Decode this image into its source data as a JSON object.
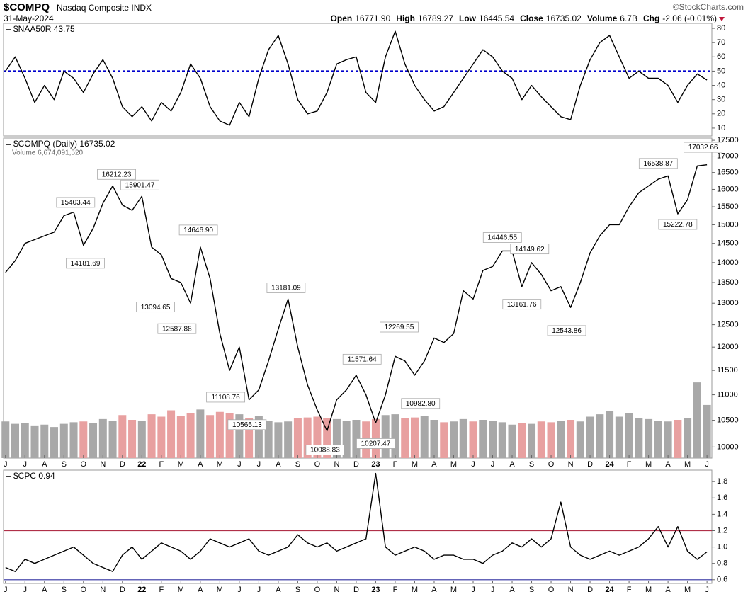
{
  "header": {
    "symbol": "$COMPQ",
    "name": "Nasdaq Composite INDX",
    "date": "31-May-2024",
    "source": "©StockCharts.com",
    "stats": [
      {
        "label": "Open",
        "value": "16771.90"
      },
      {
        "label": "High",
        "value": "16789.27"
      },
      {
        "label": "Low",
        "value": "16445.54"
      },
      {
        "label": "Close",
        "value": "16735.02"
      },
      {
        "label": "Volume",
        "value": "6.7B"
      },
      {
        "label": "Chg",
        "value": "-2.06 (-0.01%)"
      }
    ]
  },
  "chart_data": [
    {
      "type": "line",
      "title": "$NAA50R 43.75",
      "color": "#000000",
      "x": [
        0,
        0.5,
        1,
        1.5,
        2,
        2.5,
        3,
        3.5,
        4,
        4.5,
        5,
        5.5,
        6,
        6.5,
        7,
        7.5,
        8,
        8.5,
        9,
        9.5,
        10,
        10.5,
        11,
        11.5,
        12,
        12.5,
        13,
        13.5,
        14,
        14.5,
        15,
        15.5,
        16,
        16.5,
        17,
        17.5,
        18,
        18.5,
        19,
        19.5,
        20,
        20.5,
        21,
        21.5,
        22,
        22.5,
        23,
        23.5,
        24,
        24.5,
        25,
        25.5,
        26,
        26.5,
        27,
        27.5,
        28,
        28.5,
        29,
        29.5,
        30,
        30.5,
        31,
        31.5,
        32,
        32.5,
        33,
        33.5,
        34,
        34.5,
        35,
        35.5,
        36
      ],
      "values": [
        50,
        60,
        45,
        28,
        40,
        30,
        50,
        45,
        35,
        48,
        58,
        45,
        25,
        18,
        25,
        15,
        28,
        22,
        35,
        55,
        45,
        25,
        15,
        12,
        28,
        18,
        45,
        65,
        75,
        55,
        30,
        20,
        22,
        35,
        55,
        58,
        60,
        35,
        28,
        60,
        78,
        55,
        40,
        30,
        22,
        25,
        35,
        45,
        55,
        65,
        60,
        50,
        45,
        30,
        40,
        32,
        25,
        18,
        16,
        40,
        58,
        70,
        75,
        60,
        45,
        50,
        45,
        45,
        40,
        28,
        40,
        48,
        43.75
      ],
      "xlim": [
        -0.1,
        36.25
      ],
      "ylim": [
        4.5,
        83.5
      ],
      "yticks": [
        10,
        20,
        30,
        40,
        50,
        60,
        70,
        80
      ],
      "reference_lines": [
        {
          "value": 50,
          "color": "#0000cc",
          "style": "dashed"
        }
      ]
    },
    {
      "type": "line",
      "title": "$COMPQ (Daily) 16735.02",
      "color": "#000000",
      "log": true,
      "x": [
        0,
        0.5,
        1,
        1.5,
        2,
        2.5,
        3,
        3.5,
        4,
        4.5,
        5,
        5.5,
        6,
        6.5,
        7,
        7.5,
        8,
        8.5,
        9,
        9.5,
        10,
        10.5,
        11,
        11.5,
        12,
        12.5,
        13,
        13.5,
        14,
        14.5,
        15,
        15.5,
        16,
        16.5,
        17,
        17.5,
        18,
        18.5,
        19,
        19.5,
        20,
        20.5,
        21,
        21.5,
        22,
        22.5,
        23,
        23.5,
        24,
        24.5,
        25,
        25.5,
        26,
        26.5,
        27,
        27.5,
        28,
        28.5,
        29,
        29.5,
        30,
        30.5,
        31,
        31.5,
        32,
        32.5,
        33,
        33.5,
        34,
        34.5,
        35,
        35.5,
        36
      ],
      "values": [
        13750,
        14050,
        14500,
        14600,
        14700,
        14800,
        15250,
        15350,
        14450,
        14900,
        15600,
        16100,
        15550,
        15400,
        15800,
        14400,
        14200,
        13600,
        13500,
        13000,
        14400,
        13600,
        12300,
        11500,
        12000,
        10900,
        11100,
        11700,
        12400,
        13100,
        12000,
        11200,
        10700,
        10300,
        10900,
        11100,
        11400,
        11000,
        10450,
        11000,
        11800,
        11700,
        11400,
        11700,
        12200,
        12100,
        12300,
        13300,
        13100,
        13800,
        13900,
        14300,
        14300,
        13400,
        14000,
        13700,
        13300,
        13400,
        12900,
        13500,
        14250,
        14700,
        15000,
        15000,
        15500,
        15900,
        16100,
        16300,
        16400,
        15300,
        15700,
        16700,
        16735.02
      ],
      "xlim": [
        -0.1,
        36.25
      ],
      "ylim": [
        9800,
        17570
      ],
      "yticks": [
        10000,
        10500,
        11000,
        11500,
        12000,
        12500,
        13000,
        13500,
        14000,
        14500,
        15000,
        15500,
        16000,
        16500,
        17000,
        17500
      ],
      "volume": {
        "label": "Volume 6,674,091,520",
        "up_color": "#a8a8a8",
        "down_color": "#e8a0a0",
        "ylim": [
          0,
          16000000000
        ],
        "values": [
          4600000000.0,
          4300000000.0,
          4400000000.0,
          4100000000.0,
          4200000000.0,
          3900000000.0,
          4300000000.0,
          4500000000.0,
          4600000000.0,
          4400000000.0,
          4900000000.0,
          4700000000.0,
          5400000000.0,
          4800000000.0,
          4700000000.0,
          5500000000.0,
          5200000000.0,
          6000000000.0,
          5300000000.0,
          5600000000.0,
          6100000000.0,
          5400000000.0,
          5800000000.0,
          5600000000.0,
          5500000000.0,
          5000000000.0,
          5300000000.0,
          4700000000.0,
          4500000000.0,
          4600000000.0,
          5000000000.0,
          5100000000.0,
          5200000000.0,
          5000000000.0,
          4900000000.0,
          4700000000.0,
          4800000000.0,
          4600000000.0,
          4900000000.0,
          5400000000.0,
          5500000000.0,
          5000000000.0,
          5100000000.0,
          5300000000.0,
          4800000000.0,
          4500000000.0,
          4600000000.0,
          4900000000.0,
          4600000000.0,
          4800000000.0,
          4700000000.0,
          4500000000.0,
          4200000000.0,
          4400000000.0,
          4300000000.0,
          4600000000.0,
          4500000000.0,
          4700000000.0,
          4800000000.0,
          4600000000.0,
          5200000000.0,
          5500000000.0,
          5900000000.0,
          5200000000.0,
          5600000000.0,
          5000000000.0,
          4900000000.0,
          4700000000.0,
          4600000000.0,
          4800000000.0,
          5000000000.0,
          9500000000.0,
          6674091520
        ]
      },
      "annotations": [
        {
          "x": 3.6,
          "value": 15403.44,
          "label": "15403.44"
        },
        {
          "x": 4.1,
          "value": 14181.69,
          "label": "14181.69"
        },
        {
          "x": 5.7,
          "value": 16212.23,
          "label": "16212.23"
        },
        {
          "x": 6.9,
          "value": 15901.47,
          "label": "15901.47"
        },
        {
          "x": 7.7,
          "value": 13094.65,
          "label": "13094.65"
        },
        {
          "x": 8.8,
          "value": 12587.88,
          "label": "12587.88"
        },
        {
          "x": 9.9,
          "value": 14646.9,
          "label": "14646.90"
        },
        {
          "x": 11.3,
          "value": 11108.76,
          "label": "11108.76"
        },
        {
          "x": 12.4,
          "value": 10565.13,
          "label": "10565.13"
        },
        {
          "x": 14.4,
          "value": 13181.09,
          "label": "13181.09"
        },
        {
          "x": 16.4,
          "value": 10088.83,
          "label": "10088.83"
        },
        {
          "x": 18.3,
          "value": 11571.64,
          "label": "11571.64"
        },
        {
          "x": 19.0,
          "value": 10207.47,
          "label": "10207.47"
        },
        {
          "x": 20.2,
          "value": 12269.55,
          "label": "12269.55"
        },
        {
          "x": 21.3,
          "value": 10982.8,
          "label": "10982.80"
        },
        {
          "x": 25.5,
          "value": 14446.55,
          "label": "14446.55"
        },
        {
          "x": 26.5,
          "value": 13161.76,
          "label": "13161.76"
        },
        {
          "x": 26.9,
          "value": 14149.62,
          "label": "14149.62"
        },
        {
          "x": 28.8,
          "value": 12543.86,
          "label": "12543.86"
        },
        {
          "x": 33.5,
          "value": 16538.87,
          "label": "16538.87"
        },
        {
          "x": 34.5,
          "value": 15222.78,
          "label": "15222.78"
        },
        {
          "x": 35.8,
          "value": 17032.66,
          "label": "17032.66"
        }
      ],
      "xticks": [
        {
          "value": 0,
          "label": "J"
        },
        {
          "value": 1,
          "label": "J"
        },
        {
          "value": 2,
          "label": "A"
        },
        {
          "value": 3,
          "label": "S"
        },
        {
          "value": 4,
          "label": "O"
        },
        {
          "value": 5,
          "label": "N"
        },
        {
          "value": 6,
          "label": "D"
        },
        {
          "value": 7,
          "label": "22"
        },
        {
          "value": 8,
          "label": "F"
        },
        {
          "value": 9,
          "label": "M"
        },
        {
          "value": 10,
          "label": "A"
        },
        {
          "value": 11,
          "label": "M"
        },
        {
          "value": 12,
          "label": "J"
        },
        {
          "value": 13,
          "label": "J"
        },
        {
          "value": 14,
          "label": "A"
        },
        {
          "value": 15,
          "label": "S"
        },
        {
          "value": 16,
          "label": "O"
        },
        {
          "value": 17,
          "label": "N"
        },
        {
          "value": 18,
          "label": "D"
        },
        {
          "value": 19,
          "label": "23"
        },
        {
          "value": 20,
          "label": "F"
        },
        {
          "value": 21,
          "label": "M"
        },
        {
          "value": 22,
          "label": "A"
        },
        {
          "value": 23,
          "label": "M"
        },
        {
          "value": 24,
          "label": "J"
        },
        {
          "value": 25,
          "label": "J"
        },
        {
          "value": 26,
          "label": "A"
        },
        {
          "value": 27,
          "label": "S"
        },
        {
          "value": 28,
          "label": "O"
        },
        {
          "value": 29,
          "label": "N"
        },
        {
          "value": 30,
          "label": "D"
        },
        {
          "value": 31,
          "label": "24"
        },
        {
          "value": 32,
          "label": "F"
        },
        {
          "value": 33,
          "label": "M"
        },
        {
          "value": 34,
          "label": "A"
        },
        {
          "value": 35,
          "label": "M"
        },
        {
          "value": 36,
          "label": "J"
        }
      ]
    },
    {
      "type": "line",
      "title": "$CPC 0.94",
      "color": "#000000",
      "x": [
        0,
        0.5,
        1,
        1.5,
        2,
        2.5,
        3,
        3.5,
        4,
        4.5,
        5,
        5.5,
        6,
        6.5,
        7,
        7.5,
        8,
        8.5,
        9,
        9.5,
        10,
        10.5,
        11,
        11.5,
        12,
        12.5,
        13,
        13.5,
        14,
        14.5,
        15,
        15.5,
        16,
        16.5,
        17,
        17.5,
        18,
        18.5,
        19,
        19.5,
        20,
        20.5,
        21,
        21.5,
        22,
        22.5,
        23,
        23.5,
        24,
        24.5,
        25,
        25.5,
        26,
        26.5,
        27,
        27.5,
        28,
        28.5,
        29,
        29.5,
        30,
        30.5,
        31,
        31.5,
        32,
        32.5,
        33,
        33.5,
        34,
        34.5,
        35,
        35.5,
        36
      ],
      "values": [
        0.75,
        0.7,
        0.85,
        0.8,
        0.85,
        0.9,
        0.95,
        1.0,
        0.9,
        0.8,
        0.75,
        0.7,
        0.9,
        1.0,
        0.85,
        0.95,
        1.05,
        1.0,
        0.95,
        0.85,
        0.95,
        1.1,
        1.05,
        1.0,
        1.05,
        1.1,
        0.95,
        0.9,
        0.95,
        1.0,
        1.15,
        1.05,
        1.0,
        1.05,
        0.95,
        1.0,
        1.05,
        1.1,
        1.9,
        1.0,
        0.9,
        0.95,
        1.0,
        0.95,
        0.85,
        0.9,
        0.9,
        0.85,
        0.85,
        0.8,
        0.9,
        0.95,
        1.05,
        1.0,
        1.1,
        1.0,
        1.1,
        1.55,
        1.0,
        0.9,
        0.85,
        0.9,
        0.95,
        0.9,
        0.95,
        1.0,
        1.1,
        1.25,
        1.0,
        1.25,
        0.95,
        0.85,
        0.94
      ],
      "xlim": [
        -0.1,
        36.25
      ],
      "ylim": [
        0.555,
        1.94
      ],
      "yticks": [
        {
          "value": 0.6,
          "label": "0.6"
        },
        {
          "value": 0.8,
          "label": "0.8"
        },
        {
          "value": 1,
          "label": "1.0"
        },
        {
          "value": 1.2,
          "label": "1.2"
        },
        {
          "value": 1.4,
          "label": "1.4"
        },
        {
          "value": 1.6,
          "label": "1.6"
        },
        {
          "value": 1.8,
          "label": "1.8"
        }
      ],
      "reference_lines": [
        {
          "value": 1.2,
          "color": "#b03048",
          "style": "solid"
        },
        {
          "value": 0.6,
          "color": "#3030a0",
          "style": "solid"
        }
      ],
      "xticks": [
        {
          "value": 0,
          "label": "J"
        },
        {
          "value": 1,
          "label": "J"
        },
        {
          "value": 2,
          "label": "A"
        },
        {
          "value": 3,
          "label": "S"
        },
        {
          "value": 4,
          "label": "O"
        },
        {
          "value": 5,
          "label": "N"
        },
        {
          "value": 6,
          "label": "D"
        },
        {
          "value": 7,
          "label": "22"
        },
        {
          "value": 8,
          "label": "F"
        },
        {
          "value": 9,
          "label": "M"
        },
        {
          "value": 10,
          "label": "A"
        },
        {
          "value": 11,
          "label": "M"
        },
        {
          "value": 12,
          "label": "J"
        },
        {
          "value": 13,
          "label": "J"
        },
        {
          "value": 14,
          "label": "A"
        },
        {
          "value": 15,
          "label": "S"
        },
        {
          "value": 16,
          "label": "O"
        },
        {
          "value": 17,
          "label": "N"
        },
        {
          "value": 18,
          "label": "D"
        },
        {
          "value": 19,
          "label": "23"
        },
        {
          "value": 20,
          "label": "F"
        },
        {
          "value": 21,
          "label": "M"
        },
        {
          "value": 22,
          "label": "A"
        },
        {
          "value": 23,
          "label": "M"
        },
        {
          "value": 24,
          "label": "J"
        },
        {
          "value": 25,
          "label": "J"
        },
        {
          "value": 26,
          "label": "A"
        },
        {
          "value": 27,
          "label": "S"
        },
        {
          "value": 28,
          "label": "O"
        },
        {
          "value": 29,
          "label": "N"
        },
        {
          "value": 30,
          "label": "D"
        },
        {
          "value": 31,
          "label": "24"
        },
        {
          "value": 32,
          "label": "F"
        },
        {
          "value": 33,
          "label": "M"
        },
        {
          "value": 34,
          "label": "A"
        },
        {
          "value": 35,
          "label": "M"
        },
        {
          "value": 36,
          "label": "J"
        }
      ]
    }
  ]
}
